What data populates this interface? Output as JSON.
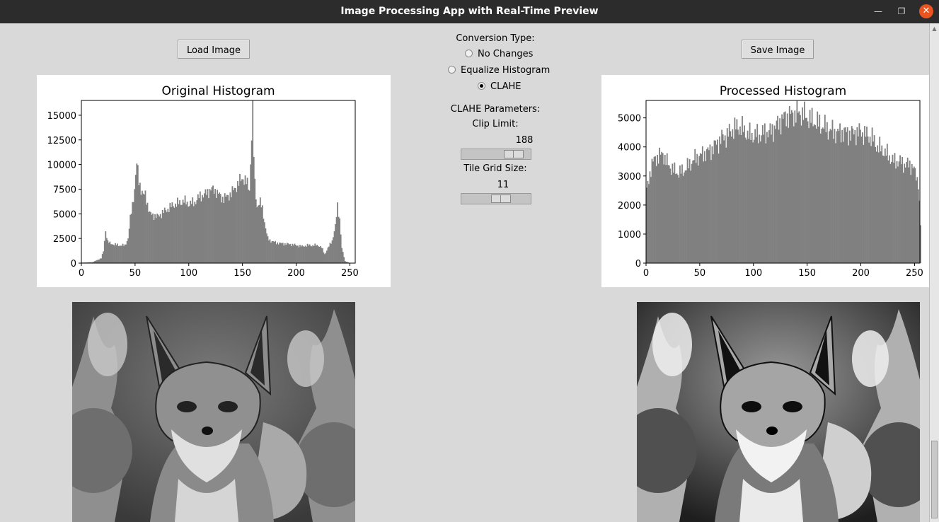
{
  "window": {
    "title": "Image Processing App with Real-Time Preview"
  },
  "toolbar": {
    "load_label": "Load Image",
    "save_label": "Save Image"
  },
  "conversion": {
    "label": "Conversion Type:",
    "options": [
      "No Changes",
      "Equalize Histogram",
      "CLAHE"
    ],
    "selected": "CLAHE"
  },
  "clahe": {
    "label": "CLAHE Parameters:",
    "clip_label": "Clip Limit:",
    "clip_value": 188,
    "clip_fraction": 0.85,
    "grid_label": "Tile Grid Size:",
    "grid_value": 11,
    "grid_fraction": 0.6
  },
  "chart_data": [
    {
      "type": "bar",
      "title": "Original Histogram",
      "xlim": [
        0,
        255
      ],
      "ylim": [
        0,
        16500
      ],
      "xticks": [
        0,
        50,
        100,
        150,
        200,
        250
      ],
      "yticks": [
        0,
        2500,
        5000,
        7500,
        10000,
        12500,
        15000
      ],
      "color": "#808080",
      "points": [
        [
          0,
          50
        ],
        [
          10,
          100
        ],
        [
          18,
          500
        ],
        [
          20,
          1200
        ],
        [
          22,
          3300
        ],
        [
          24,
          2200
        ],
        [
          26,
          2000
        ],
        [
          30,
          1900
        ],
        [
          35,
          1800
        ],
        [
          40,
          1800
        ],
        [
          43,
          2500
        ],
        [
          45,
          4500
        ],
        [
          47,
          6000
        ],
        [
          49,
          7500
        ],
        [
          51,
          10000
        ],
        [
          53,
          8500
        ],
        [
          55,
          7500
        ],
        [
          57,
          6800
        ],
        [
          59,
          7000
        ],
        [
          61,
          6000
        ],
        [
          63,
          5000
        ],
        [
          66,
          4900
        ],
        [
          70,
          4700
        ],
        [
          75,
          5100
        ],
        [
          80,
          5500
        ],
        [
          85,
          5900
        ],
        [
          90,
          6100
        ],
        [
          95,
          6300
        ],
        [
          100,
          6000
        ],
        [
          105,
          6200
        ],
        [
          110,
          6800
        ],
        [
          115,
          7000
        ],
        [
          120,
          7500
        ],
        [
          125,
          7300
        ],
        [
          130,
          6600
        ],
        [
          135,
          6700
        ],
        [
          140,
          7200
        ],
        [
          145,
          8000
        ],
        [
          150,
          8700
        ],
        [
          153,
          8200
        ],
        [
          156,
          7500
        ],
        [
          158,
          13000
        ],
        [
          159,
          15700
        ],
        [
          160,
          11000
        ],
        [
          161,
          8000
        ],
        [
          163,
          5800
        ],
        [
          166,
          6100
        ],
        [
          168,
          5600
        ],
        [
          171,
          3500
        ],
        [
          173,
          2500
        ],
        [
          177,
          2200
        ],
        [
          180,
          2100
        ],
        [
          185,
          2000
        ],
        [
          190,
          1950
        ],
        [
          195,
          1900
        ],
        [
          200,
          1800
        ],
        [
          205,
          1700
        ],
        [
          210,
          1800
        ],
        [
          215,
          1800
        ],
        [
          220,
          1800
        ],
        [
          223,
          1600
        ],
        [
          226,
          900
        ],
        [
          230,
          1700
        ],
        [
          233,
          2300
        ],
        [
          236,
          3700
        ],
        [
          238,
          5800
        ],
        [
          240,
          4500
        ],
        [
          242,
          1500
        ],
        [
          245,
          200
        ],
        [
          249,
          30
        ],
        [
          255,
          0
        ]
      ]
    },
    {
      "type": "bar",
      "title": "Processed Histogram",
      "xlim": [
        0,
        255
      ],
      "ylim": [
        0,
        5600
      ],
      "xticks": [
        0,
        50,
        100,
        150,
        200,
        250
      ],
      "yticks": [
        0,
        1000,
        2000,
        3000,
        4000,
        5000
      ],
      "color": "#808080",
      "points": [
        [
          0,
          2500
        ],
        [
          3,
          3100
        ],
        [
          5,
          3400
        ],
        [
          8,
          3600
        ],
        [
          10,
          3650
        ],
        [
          13,
          3700
        ],
        [
          15,
          3800
        ],
        [
          17,
          3600
        ],
        [
          20,
          3400
        ],
        [
          25,
          3200
        ],
        [
          30,
          3100
        ],
        [
          35,
          3200
        ],
        [
          40,
          3400
        ],
        [
          45,
          3600
        ],
        [
          50,
          3700
        ],
        [
          55,
          3800
        ],
        [
          60,
          3900
        ],
        [
          65,
          4100
        ],
        [
          70,
          4300
        ],
        [
          75,
          4400
        ],
        [
          80,
          4600
        ],
        [
          85,
          4700
        ],
        [
          90,
          4600
        ],
        [
          95,
          4400
        ],
        [
          100,
          4400
        ],
        [
          105,
          4400
        ],
        [
          110,
          4500
        ],
        [
          115,
          4500
        ],
        [
          120,
          4700
        ],
        [
          125,
          4900
        ],
        [
          130,
          5050
        ],
        [
          135,
          5100
        ],
        [
          140,
          5150
        ],
        [
          145,
          5150
        ],
        [
          150,
          5000
        ],
        [
          155,
          4900
        ],
        [
          160,
          4800
        ],
        [
          165,
          4700
        ],
        [
          170,
          4600
        ],
        [
          175,
          4500
        ],
        [
          180,
          4500
        ],
        [
          185,
          4500
        ],
        [
          190,
          4450
        ],
        [
          195,
          4500
        ],
        [
          200,
          4500
        ],
        [
          205,
          4400
        ],
        [
          210,
          4300
        ],
        [
          215,
          4000
        ],
        [
          220,
          3900
        ],
        [
          225,
          3700
        ],
        [
          230,
          3500
        ],
        [
          235,
          3500
        ],
        [
          240,
          3400
        ],
        [
          245,
          3400
        ],
        [
          248,
          3300
        ],
        [
          251,
          3000
        ],
        [
          253,
          2800
        ],
        [
          255,
          1300
        ]
      ]
    }
  ]
}
